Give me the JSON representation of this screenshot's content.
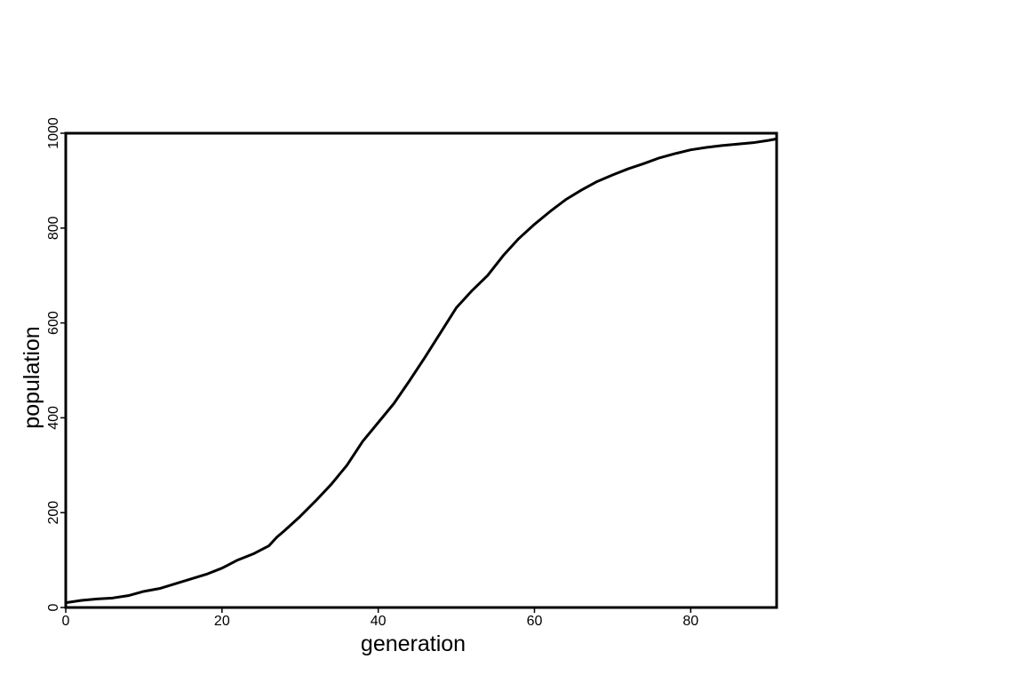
{
  "chart_data": {
    "type": "line",
    "title": "",
    "xlabel": "generation",
    "ylabel": "population",
    "xlim": [
      0,
      91
    ],
    "ylim": [
      0,
      1000
    ],
    "xticks": [
      0,
      20,
      40,
      60,
      80
    ],
    "yticks": [
      0,
      200,
      400,
      600,
      800,
      1000
    ],
    "grid": false,
    "legend": "none",
    "line_color": "#000000",
    "series": [
      {
        "x": [
          0,
          2,
          4,
          6,
          8,
          10,
          12,
          14,
          16,
          18,
          20,
          22,
          24,
          26,
          27,
          28,
          30,
          32,
          34,
          36,
          37,
          38,
          40,
          42,
          44,
          46,
          48,
          50,
          52,
          54,
          56,
          57,
          58,
          60,
          62,
          64,
          66,
          68,
          70,
          72,
          74,
          76,
          78,
          80,
          82,
          84,
          86,
          88,
          90,
          91
        ],
        "y": [
          10,
          15,
          18,
          20,
          25,
          34,
          40,
          50,
          60,
          70,
          83,
          100,
          113,
          130,
          148,
          162,
          192,
          225,
          260,
          300,
          325,
          350,
          390,
          430,
          478,
          528,
          580,
          632,
          668,
          700,
          742,
          760,
          778,
          808,
          835,
          860,
          880,
          898,
          912,
          925,
          936,
          948,
          957,
          965,
          970,
          974,
          977,
          980,
          985,
          988
        ]
      }
    ]
  }
}
